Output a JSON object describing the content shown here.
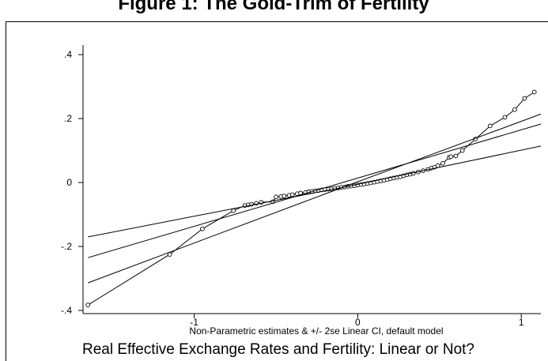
{
  "chart_data": {
    "type": "line",
    "title": "Figure 1: The Gold-Trim of Fertility",
    "xlabel": "Non-Parametric estimates & +/- 2se Linear CI, default model",
    "caption": "Real Effective Exchange Rates and Fertility: Linear or Not?",
    "xlim": [
      -1.68,
      1.12
    ],
    "ylim": [
      -0.41,
      0.43
    ],
    "x_ticks": [
      -1,
      0,
      1
    ],
    "x_tick_labels": [
      "-1",
      "0",
      "1"
    ],
    "y_ticks": [
      -0.4,
      -0.2,
      0,
      0.2,
      0.4
    ],
    "y_tick_labels": [
      "-.4",
      "-.2",
      "0",
      ".2",
      ".4"
    ],
    "grid": false,
    "series": [
      {
        "kind": "estimate",
        "marker": "circle",
        "x": [
          -1.65,
          -1.15,
          -0.95,
          -0.76,
          -0.69,
          -0.67,
          -0.65,
          -0.62,
          -0.59,
          -0.52,
          -0.5,
          -0.47,
          -0.45,
          -0.42,
          -0.4,
          -0.37,
          -0.35,
          -0.32,
          -0.3,
          -0.28,
          -0.26,
          -0.24,
          -0.22,
          -0.2,
          -0.18,
          -0.16,
          -0.14,
          -0.12,
          -0.1,
          -0.08,
          -0.06,
          -0.04,
          -0.02,
          0.0,
          0.02,
          0.04,
          0.06,
          0.08,
          0.1,
          0.12,
          0.14,
          0.16,
          0.18,
          0.2,
          0.22,
          0.24,
          0.26,
          0.28,
          0.3,
          0.32,
          0.34,
          0.37,
          0.4,
          0.43,
          0.45,
          0.47,
          0.49,
          0.52,
          0.56,
          0.57,
          0.6,
          0.64,
          0.72,
          0.81,
          0.9,
          0.96,
          1.02,
          1.08
        ],
        "y": [
          -0.383,
          -0.225,
          -0.145,
          -0.088,
          -0.072,
          -0.07,
          -0.068,
          -0.065,
          -0.062,
          -0.06,
          -0.045,
          -0.044,
          -0.042,
          -0.04,
          -0.038,
          -0.035,
          -0.033,
          -0.031,
          -0.029,
          -0.028,
          -0.026,
          -0.025,
          -0.023,
          -0.022,
          -0.021,
          -0.02,
          -0.018,
          -0.017,
          -0.015,
          -0.014,
          -0.012,
          -0.011,
          -0.01,
          -0.008,
          -0.006,
          -0.005,
          -0.003,
          -0.001,
          0.001,
          0.003,
          0.005,
          0.007,
          0.009,
          0.012,
          0.014,
          0.016,
          0.018,
          0.021,
          0.024,
          0.026,
          0.029,
          0.033,
          0.037,
          0.041,
          0.045,
          0.048,
          0.053,
          0.06,
          0.079,
          0.081,
          0.083,
          0.1,
          0.136,
          0.177,
          0.204,
          0.228,
          0.263,
          0.283
        ]
      },
      {
        "kind": "linear-fit",
        "x": [
          -1.65,
          1.12
        ],
        "y": [
          -0.235,
          0.183
        ]
      },
      {
        "kind": "ci-lower",
        "x": [
          -1.65,
          -0.05,
          1.12
        ],
        "y": [
          -0.314,
          -0.007,
          0.214
        ]
      },
      {
        "kind": "ci-upper",
        "x": [
          -1.65,
          -0.05,
          1.12
        ],
        "y": [
          -0.17,
          -0.011,
          0.114
        ]
      }
    ]
  }
}
